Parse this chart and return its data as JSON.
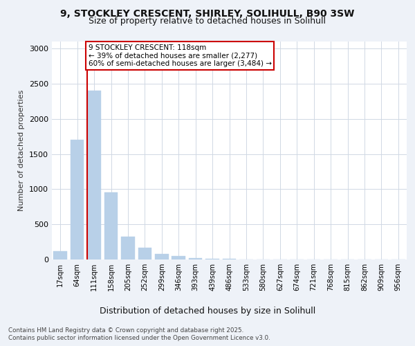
{
  "title_line1": "9, STOCKLEY CRESCENT, SHIRLEY, SOLIHULL, B90 3SW",
  "title_line2": "Size of property relative to detached houses in Solihull",
  "xlabel": "Distribution of detached houses by size in Solihull",
  "ylabel": "Number of detached properties",
  "categories": [
    "17sqm",
    "64sqm",
    "111sqm",
    "158sqm",
    "205sqm",
    "252sqm",
    "299sqm",
    "346sqm",
    "393sqm",
    "439sqm",
    "486sqm",
    "533sqm",
    "580sqm",
    "627sqm",
    "674sqm",
    "721sqm",
    "768sqm",
    "815sqm",
    "862sqm",
    "909sqm",
    "956sqm"
  ],
  "values": [
    120,
    1700,
    2400,
    950,
    320,
    165,
    80,
    45,
    20,
    10,
    5,
    3,
    2,
    1,
    1,
    1,
    0,
    0,
    0,
    0,
    0
  ],
  "bar_color": "#b8d0e8",
  "vline_bar_index": 2,
  "vline_color": "#cc0000",
  "annotation_text": "9 STOCKLEY CRESCENT: 118sqm\n← 39% of detached houses are smaller (2,277)\n60% of semi-detached houses are larger (3,484) →",
  "annotation_box_edgecolor": "#cc0000",
  "annotation_bg": "#ffffff",
  "ylim": [
    0,
    3100
  ],
  "yticks": [
    0,
    500,
    1000,
    1500,
    2000,
    2500,
    3000
  ],
  "footnote1": "Contains HM Land Registry data © Crown copyright and database right 2025.",
  "footnote2": "Contains public sector information licensed under the Open Government Licence v3.0.",
  "background_color": "#eef2f8",
  "plot_bg_color": "#ffffff",
  "grid_color": "#d0d8e4"
}
